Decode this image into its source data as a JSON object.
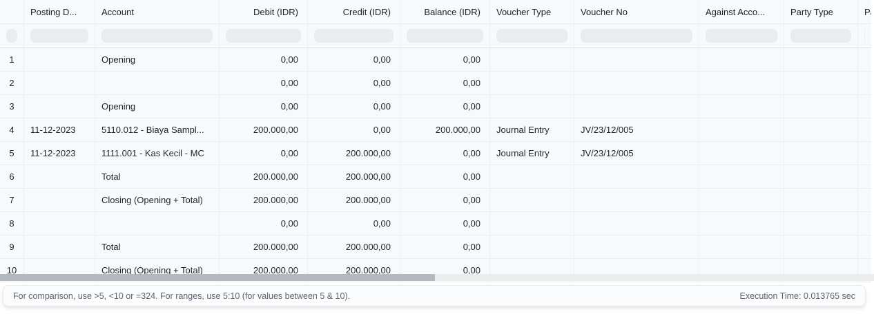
{
  "table": {
    "columns": [
      {
        "key": "idx",
        "label": "",
        "align": "center"
      },
      {
        "key": "posting_date",
        "label": "Posting D...",
        "align": "left"
      },
      {
        "key": "account",
        "label": "Account",
        "align": "left"
      },
      {
        "key": "debit",
        "label": "Debit (IDR)",
        "align": "right"
      },
      {
        "key": "credit",
        "label": "Credit (IDR)",
        "align": "right"
      },
      {
        "key": "balance",
        "label": "Balance (IDR)",
        "align": "right"
      },
      {
        "key": "voucher_type",
        "label": "Voucher Type",
        "align": "left"
      },
      {
        "key": "voucher_no",
        "label": "Voucher No",
        "align": "left"
      },
      {
        "key": "against_account",
        "label": "Against Acco...",
        "align": "left"
      },
      {
        "key": "party_type",
        "label": "Party Type",
        "align": "left"
      },
      {
        "key": "party",
        "label": "Pa",
        "align": "left"
      }
    ],
    "rows": [
      {
        "idx": "1",
        "posting_date": "",
        "account": "Opening",
        "debit": "0,00",
        "credit": "0,00",
        "balance": "0,00",
        "voucher_type": "",
        "voucher_no": "",
        "against_account": "",
        "party_type": "",
        "party": ""
      },
      {
        "idx": "2",
        "posting_date": "",
        "account": "",
        "debit": "0,00",
        "credit": "0,00",
        "balance": "0,00",
        "voucher_type": "",
        "voucher_no": "",
        "against_account": "",
        "party_type": "",
        "party": ""
      },
      {
        "idx": "3",
        "posting_date": "",
        "account": "Opening",
        "debit": "0,00",
        "credit": "0,00",
        "balance": "0,00",
        "voucher_type": "",
        "voucher_no": "",
        "against_account": "",
        "party_type": "",
        "party": ""
      },
      {
        "idx": "4",
        "posting_date": "11-12-2023",
        "account": "5110.012 - Biaya Sampl...",
        "debit": "200.000,00",
        "credit": "0,00",
        "balance": "200.000,00",
        "voucher_type": "Journal Entry",
        "voucher_no": "JV/23/12/005",
        "against_account": "",
        "party_type": "",
        "party": ""
      },
      {
        "idx": "5",
        "posting_date": "11-12-2023",
        "account": "1111.001 - Kas Kecil - MC",
        "debit": "0,00",
        "credit": "200.000,00",
        "balance": "0,00",
        "voucher_type": "Journal Entry",
        "voucher_no": "JV/23/12/005",
        "against_account": "",
        "party_type": "",
        "party": ""
      },
      {
        "idx": "6",
        "posting_date": "",
        "account": "Total",
        "debit": "200.000,00",
        "credit": "200.000,00",
        "balance": "0,00",
        "voucher_type": "",
        "voucher_no": "",
        "against_account": "",
        "party_type": "",
        "party": ""
      },
      {
        "idx": "7",
        "posting_date": "",
        "account": "Closing (Opening + Total)",
        "debit": "200.000,00",
        "credit": "200.000,00",
        "balance": "0,00",
        "voucher_type": "",
        "voucher_no": "",
        "against_account": "",
        "party_type": "",
        "party": ""
      },
      {
        "idx": "8",
        "posting_date": "",
        "account": "",
        "debit": "0,00",
        "credit": "0,00",
        "balance": "0,00",
        "voucher_type": "",
        "voucher_no": "",
        "against_account": "",
        "party_type": "",
        "party": ""
      },
      {
        "idx": "9",
        "posting_date": "",
        "account": "Total",
        "debit": "200.000,00",
        "credit": "200.000,00",
        "balance": "0,00",
        "voucher_type": "",
        "voucher_no": "",
        "against_account": "",
        "party_type": "",
        "party": ""
      },
      {
        "idx": "10",
        "posting_date": "",
        "account": "Closing (Opening + Total)",
        "debit": "200.000,00",
        "credit": "200.000,00",
        "balance": "0,00",
        "voucher_type": "",
        "voucher_no": "",
        "against_account": "",
        "party_type": "",
        "party": ""
      }
    ]
  },
  "footer": {
    "hint": "For comparison, use >5, <10 or =324. For ranges, use 5:10 (for values between 5 & 10).",
    "execution_time": "Execution Time: 0.013765 sec"
  },
  "colors": {
    "table_background": "#f7fafc",
    "filter_pill": "#e7edf0",
    "row_border": "#e9eef1",
    "scrollbar_thumb": "#b4b9c0",
    "scrollbar_track": "#eaecee",
    "text_primary": "#1d2329",
    "text_muted": "#5b6470"
  }
}
